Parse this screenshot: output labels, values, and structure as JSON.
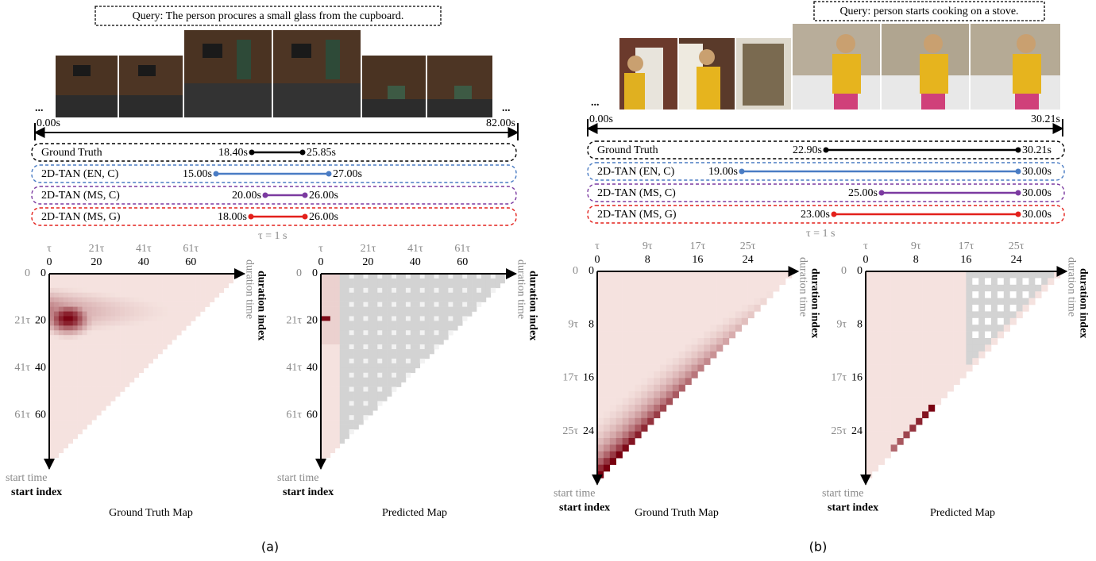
{
  "panels": [
    {
      "query": "Query: The person procures a small glass from the cupboard.",
      "ellipsis": "...",
      "timeline": {
        "start": "0.00s",
        "end": "82.00s"
      },
      "rows": [
        {
          "label": "Ground Truth",
          "start": "18.40s",
          "end": "25.85s"
        },
        {
          "label": "2D-TAN (EN, C)",
          "start": "15.00s",
          "end": "27.00s"
        },
        {
          "label": "2D-TAN (MS, C)",
          "start": "20.00s",
          "end": "26.00s"
        },
        {
          "label": "2D-TAN (MS, G)",
          "start": "18.00s",
          "end": "26.00s"
        }
      ],
      "tau_note": "τ = 1 s",
      "maps": [
        {
          "title": "Ground Truth Map",
          "index_ticks": [
            0,
            20,
            40,
            60
          ],
          "top_time_ticks": [
            "τ",
            "21τ",
            "41τ",
            "61τ"
          ],
          "left_time_ticks": [
            "0",
            "21τ",
            "41τ",
            "61τ"
          ],
          "duration_time": "duration time",
          "duration_index": "duration index",
          "start_time": "start time",
          "start_index": "start index"
        },
        {
          "title": "Predicted Map",
          "index_ticks": [
            0,
            20,
            40,
            60
          ],
          "top_time_ticks": [
            "τ",
            "21τ",
            "41τ",
            "61τ"
          ],
          "left_time_ticks": [
            "0",
            "21τ",
            "41τ",
            "61τ"
          ],
          "duration_time": "duration time",
          "duration_index": "duration index",
          "start_time": "start time",
          "start_index": "start index"
        }
      ],
      "caption": "(a)"
    },
    {
      "query": "Query: person starts cooking on a stove.",
      "ellipsis": "...",
      "timeline": {
        "start": "0.00s",
        "end": "30.21s"
      },
      "rows": [
        {
          "label": "Ground Truth",
          "start": "22.90s",
          "end": "30.21s"
        },
        {
          "label": "2D-TAN (EN, C)",
          "start": "19.00s",
          "end": "30.00s"
        },
        {
          "label": "2D-TAN (MS, C)",
          "start": "25.00s",
          "end": "30.00s"
        },
        {
          "label": "2D-TAN (MS, G)",
          "start": "23.00s",
          "end": "30.00s"
        }
      ],
      "tau_note": "τ = 1 s",
      "maps": [
        {
          "title": "Ground Truth Map",
          "index_ticks": [
            0,
            8,
            16,
            24
          ],
          "top_time_ticks": [
            "τ",
            "9τ",
            "17τ",
            "25τ"
          ],
          "left_time_ticks": [
            "0",
            "9τ",
            "17τ",
            "25τ"
          ],
          "duration_time": "duration time",
          "duration_index": "duration index",
          "start_time": "start time",
          "start_index": "start index"
        },
        {
          "title": "Predicted Map",
          "index_ticks": [
            0,
            8,
            16,
            24
          ],
          "top_time_ticks": [
            "τ",
            "9τ",
            "17τ",
            "25τ"
          ],
          "left_time_ticks": [
            "0",
            "9τ",
            "17τ",
            "25τ"
          ],
          "duration_time": "duration time",
          "duration_index": "duration index",
          "start_time": "start time",
          "start_index": "start index"
        }
      ],
      "caption": "(b)"
    }
  ]
}
